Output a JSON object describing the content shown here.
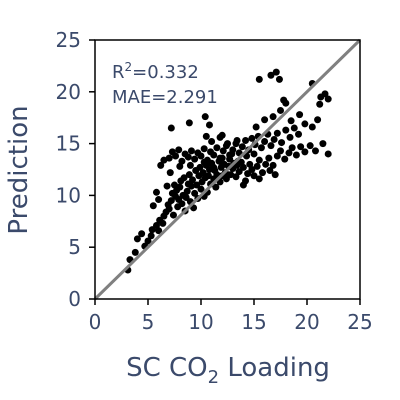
{
  "chart_data": {
    "type": "scatter",
    "title": "",
    "xlabel": "SC CO",
    "xlabel_sub": "2",
    "xlabel_suffix": " Loading",
    "ylabel": "Prediction",
    "xlim": [
      0,
      25
    ],
    "ylim": [
      0,
      25
    ],
    "xticks": [
      0,
      5,
      10,
      15,
      20,
      25
    ],
    "yticks": [
      0,
      5,
      10,
      15,
      20,
      25
    ],
    "grid": false,
    "point_color": "#000000",
    "line_color": "#808080",
    "annotations": {
      "r2_label": "R",
      "r2_sup": "2",
      "r2_value": "=0.332",
      "mae": "MAE=2.291"
    },
    "reference_line": {
      "x": [
        0,
        25
      ],
      "y": [
        0,
        25
      ]
    },
    "series": [
      {
        "points": [
          [
            3.1,
            2.8
          ],
          [
            3.3,
            3.8
          ],
          [
            3.8,
            4.5
          ],
          [
            4.0,
            5.8
          ],
          [
            4.4,
            6.3
          ],
          [
            4.7,
            5.1
          ],
          [
            5.0,
            5.6
          ],
          [
            5.3,
            6.1
          ],
          [
            5.4,
            6.7
          ],
          [
            5.8,
            7.1
          ],
          [
            6.0,
            6.6
          ],
          [
            6.1,
            7.6
          ],
          [
            6.4,
            7.3
          ],
          [
            6.5,
            8.0
          ],
          [
            6.7,
            8.4
          ],
          [
            6.9,
            9.1
          ],
          [
            7.0,
            8.7
          ],
          [
            7.2,
            9.5
          ],
          [
            7.3,
            10.2
          ],
          [
            7.4,
            8.1
          ],
          [
            7.5,
            11.0
          ],
          [
            7.6,
            9.9
          ],
          [
            7.7,
            10.5
          ],
          [
            7.8,
            8.9
          ],
          [
            7.9,
            9.6
          ],
          [
            8.0,
            10.8
          ],
          [
            8.1,
            11.4
          ],
          [
            8.2,
            9.2
          ],
          [
            8.3,
            10.0
          ],
          [
            8.4,
            11.7
          ],
          [
            8.5,
            8.5
          ],
          [
            8.6,
            9.8
          ],
          [
            8.7,
            10.4
          ],
          [
            8.8,
            11.1
          ],
          [
            8.9,
            12.0
          ],
          [
            9.0,
            9.4
          ],
          [
            9.1,
            10.9
          ],
          [
            9.2,
            11.5
          ],
          [
            9.3,
            8.8
          ],
          [
            9.4,
            10.2
          ],
          [
            9.5,
            12.4
          ],
          [
            9.6,
            11.0
          ],
          [
            9.7,
            9.7
          ],
          [
            9.8,
            11.9
          ],
          [
            9.9,
            12.7
          ],
          [
            10.0,
            10.6
          ],
          [
            10.1,
            11.3
          ],
          [
            10.2,
            12.2
          ],
          [
            10.3,
            9.9
          ],
          [
            10.4,
            11.7
          ],
          [
            10.5,
            12.9
          ],
          [
            10.6,
            10.3
          ],
          [
            10.7,
            11.9
          ],
          [
            10.8,
            12.5
          ],
          [
            10.9,
            11.1
          ],
          [
            11.0,
            13.1
          ],
          [
            11.2,
            11.6
          ],
          [
            11.3,
            12.4
          ],
          [
            11.4,
            10.8
          ],
          [
            11.5,
            12.0
          ],
          [
            11.7,
            13.3
          ],
          [
            11.8,
            11.3
          ],
          [
            11.9,
            12.7
          ],
          [
            12.0,
            11.9
          ],
          [
            12.2,
            13.0
          ],
          [
            12.3,
            12.2
          ],
          [
            12.4,
            11.6
          ],
          [
            12.6,
            12.8
          ],
          [
            12.7,
            13.5
          ],
          [
            12.8,
            12.0
          ],
          [
            13.0,
            12.6
          ],
          [
            13.1,
            13.1
          ],
          [
            13.3,
            11.8
          ],
          [
            13.4,
            12.9
          ],
          [
            13.6,
            12.3
          ],
          [
            13.8,
            13.2
          ],
          [
            14.0,
            12.7
          ],
          [
            14.2,
            11.4
          ],
          [
            14.4,
            12.1
          ],
          [
            14.6,
            13.0
          ],
          [
            14.8,
            12.5
          ],
          [
            15.0,
            11.9
          ],
          [
            15.3,
            12.8
          ],
          [
            15.5,
            13.4
          ],
          [
            15.8,
            12.2
          ],
          [
            16.1,
            13.0
          ],
          [
            16.4,
            13.6
          ],
          [
            16.8,
            12.9
          ],
          [
            17.2,
            13.8
          ],
          [
            17.5,
            14.3
          ],
          [
            17.9,
            13.5
          ],
          [
            18.3,
            14.1
          ],
          [
            18.6,
            14.6
          ],
          [
            19.0,
            13.9
          ],
          [
            19.4,
            14.7
          ],
          [
            19.8,
            14.2
          ],
          [
            20.3,
            14.8
          ],
          [
            20.8,
            14.3
          ],
          [
            21.5,
            15.0
          ],
          [
            22.0,
            14.0
          ],
          [
            7.0,
            13.6
          ],
          [
            7.3,
            14.2
          ],
          [
            7.6,
            13.8
          ],
          [
            7.9,
            14.4
          ],
          [
            8.2,
            13.3
          ],
          [
            8.5,
            14.0
          ],
          [
            8.8,
            13.7
          ],
          [
            9.1,
            14.3
          ],
          [
            9.4,
            13.5
          ],
          [
            9.7,
            14.1
          ],
          [
            10.0,
            13.8
          ],
          [
            10.3,
            14.5
          ],
          [
            10.6,
            13.4
          ],
          [
            10.9,
            14.2
          ],
          [
            11.2,
            13.9
          ],
          [
            11.5,
            14.6
          ],
          [
            11.8,
            13.6
          ],
          [
            12.1,
            14.3
          ],
          [
            12.4,
            14.8
          ],
          [
            12.7,
            13.9
          ],
          [
            13.0,
            14.4
          ],
          [
            13.3,
            15.0
          ],
          [
            13.6,
            14.1
          ],
          [
            13.9,
            14.7
          ],
          [
            14.2,
            15.3
          ],
          [
            14.5,
            14.4
          ],
          [
            14.8,
            15.5
          ],
          [
            15.1,
            14.9
          ],
          [
            15.4,
            15.7
          ],
          [
            15.7,
            14.6
          ],
          [
            16.0,
            15.2
          ],
          [
            16.3,
            15.9
          ],
          [
            16.6,
            14.8
          ],
          [
            16.9,
            15.4
          ],
          [
            17.2,
            16.0
          ],
          [
            17.6,
            15.1
          ],
          [
            18.0,
            16.3
          ],
          [
            18.4,
            15.6
          ],
          [
            18.8,
            16.5
          ],
          [
            19.2,
            15.9
          ],
          [
            7.2,
            16.5
          ],
          [
            8.9,
            17.0
          ],
          [
            10.4,
            17.6
          ],
          [
            10.8,
            16.8
          ],
          [
            12.0,
            15.8
          ],
          [
            13.4,
            15.3
          ],
          [
            15.2,
            16.6
          ],
          [
            16.0,
            17.3
          ],
          [
            16.8,
            17.6
          ],
          [
            17.5,
            18.2
          ],
          [
            18.0,
            18.9
          ],
          [
            18.5,
            17.2
          ],
          [
            19.3,
            17.8
          ],
          [
            19.8,
            16.9
          ],
          [
            20.5,
            16.6
          ],
          [
            21.0,
            17.3
          ],
          [
            15.5,
            21.2
          ],
          [
            16.6,
            21.6
          ],
          [
            17.1,
            21.9
          ],
          [
            17.4,
            21.2
          ],
          [
            17.8,
            19.2
          ],
          [
            20.5,
            20.8
          ],
          [
            21.3,
            19.5
          ],
          [
            21.7,
            19.8
          ],
          [
            22.0,
            19.3
          ],
          [
            21.2,
            18.8
          ],
          [
            10.5,
            15.7
          ],
          [
            11.0,
            15.2
          ],
          [
            11.8,
            15.6
          ],
          [
            12.5,
            15.0
          ],
          [
            6.5,
            13.4
          ],
          [
            6.2,
            12.9
          ],
          [
            5.5,
            9.0
          ],
          [
            6.0,
            9.6
          ],
          [
            5.8,
            10.3
          ],
          [
            6.8,
            10.9
          ],
          [
            7.1,
            12.2
          ],
          [
            8.0,
            12.8
          ],
          [
            9.0,
            12.9
          ],
          [
            10.3,
            13.2
          ],
          [
            11.2,
            12.7
          ],
          [
            12.0,
            13.6
          ],
          [
            12.9,
            14.0
          ],
          [
            13.5,
            13.3
          ],
          [
            14.3,
            13.8
          ],
          [
            15.0,
            14.0
          ],
          [
            14.0,
            11.0
          ],
          [
            15.5,
            11.6
          ],
          [
            16.5,
            12.4
          ],
          [
            17.0,
            12.0
          ]
        ]
      }
    ]
  }
}
